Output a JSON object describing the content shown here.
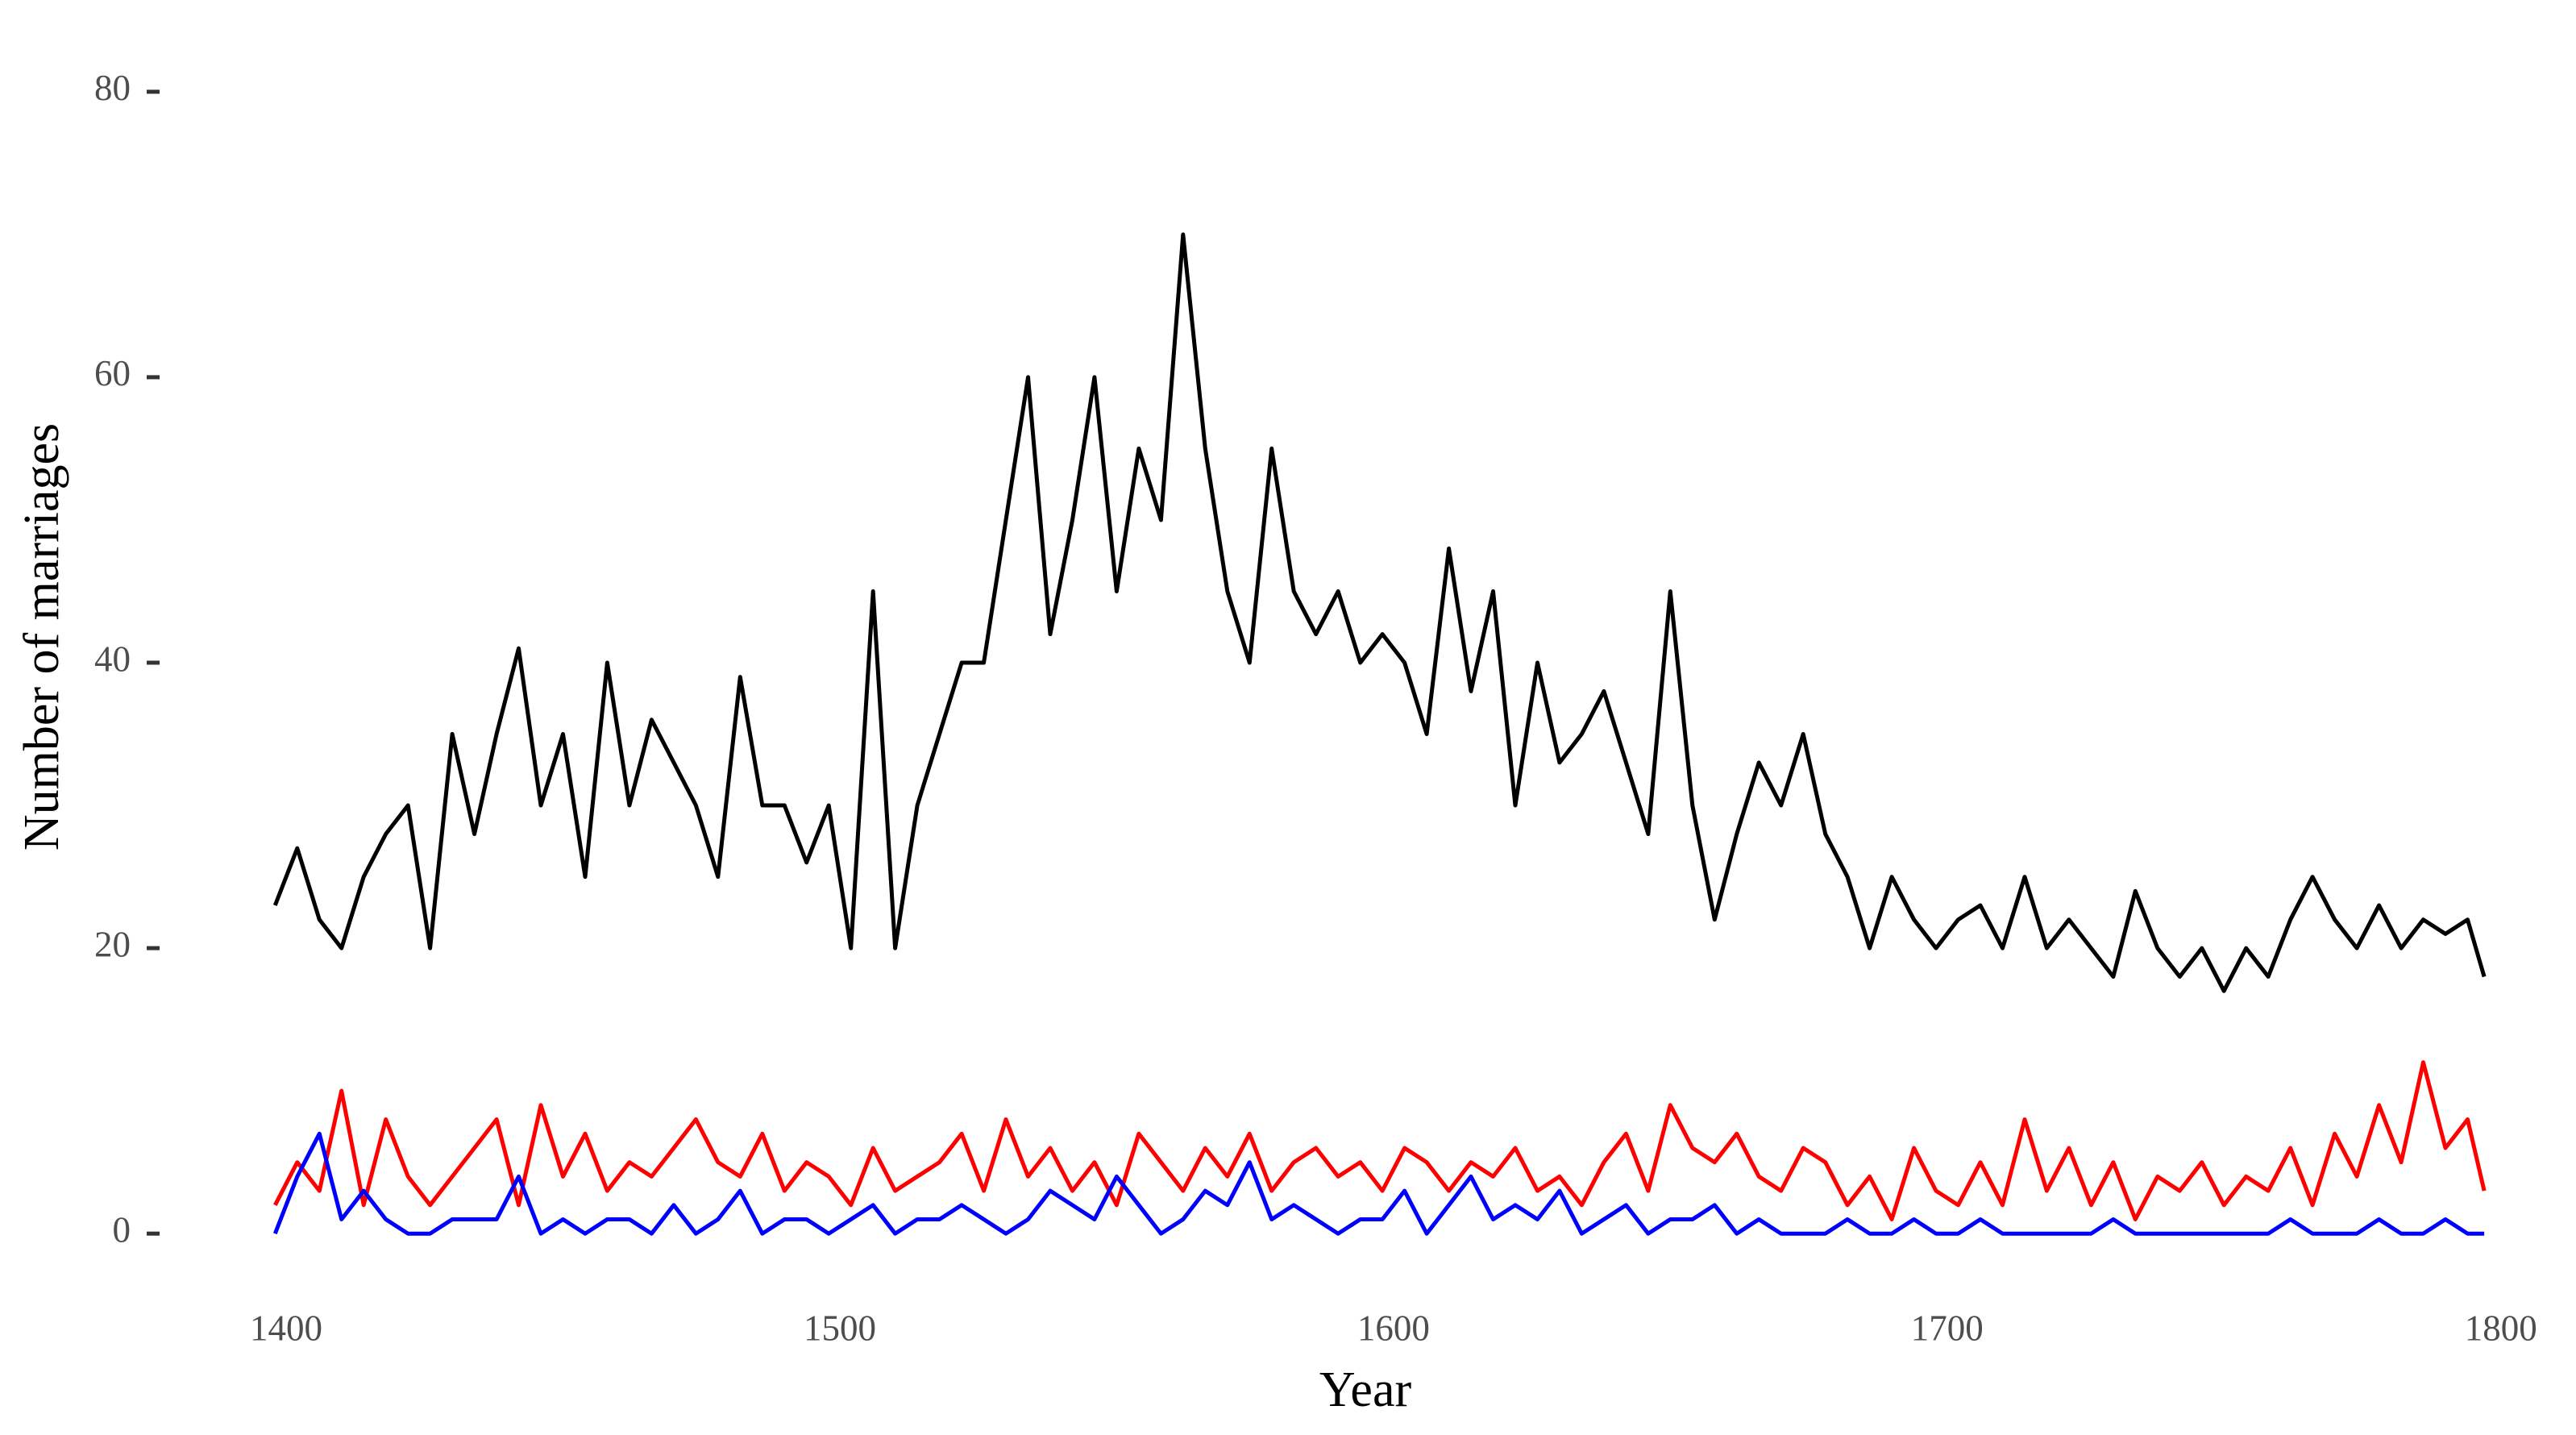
{
  "chart_data": {
    "type": "line",
    "x_label": "Year",
    "y_label": "Number of marriages",
    "x": [
      1398,
      1402,
      1406,
      1410,
      1414,
      1418,
      1422,
      1426,
      1430,
      1434,
      1438,
      1442,
      1446,
      1450,
      1454,
      1458,
      1462,
      1466,
      1470,
      1474,
      1478,
      1482,
      1486,
      1490,
      1494,
      1498,
      1502,
      1506,
      1510,
      1514,
      1518,
      1522,
      1526,
      1530,
      1534,
      1538,
      1542,
      1546,
      1550,
      1554,
      1558,
      1562,
      1566,
      1570,
      1574,
      1578,
      1582,
      1586,
      1590,
      1594,
      1598,
      1602,
      1606,
      1610,
      1614,
      1618,
      1622,
      1626,
      1630,
      1634,
      1638,
      1642,
      1646,
      1650,
      1654,
      1658,
      1662,
      1666,
      1670,
      1674,
      1678,
      1682,
      1686,
      1690,
      1694,
      1698,
      1702,
      1706,
      1710,
      1714,
      1718,
      1722,
      1726,
      1730,
      1734,
      1738,
      1742,
      1746,
      1750,
      1754,
      1758,
      1762,
      1766,
      1770,
      1774,
      1778,
      1782,
      1786,
      1790,
      1794,
      1797
    ],
    "series": [
      {
        "color": "#000000",
        "values": [
          23,
          27,
          22,
          20,
          25,
          28,
          30,
          20,
          35,
          28,
          35,
          41,
          30,
          35,
          25,
          40,
          30,
          36,
          33,
          30,
          25,
          39,
          30,
          30,
          26,
          30,
          20,
          45,
          20,
          30,
          35,
          40,
          40,
          50,
          60,
          42,
          50,
          60,
          45,
          55,
          50,
          70,
          55,
          45,
          40,
          55,
          45,
          42,
          45,
          40,
          42,
          40,
          35,
          48,
          38,
          45,
          30,
          40,
          33,
          35,
          38,
          33,
          28,
          45,
          30,
          22,
          28,
          33,
          30,
          35,
          28,
          25,
          20,
          25,
          22,
          20,
          22,
          23,
          20,
          25,
          20,
          22,
          20,
          18,
          24,
          20,
          18,
          20,
          17,
          20,
          18,
          22,
          25,
          22,
          20,
          23,
          20,
          22,
          21,
          22,
          18
        ]
      },
      {
        "color": "#ff0000",
        "values": [
          2,
          5,
          3,
          10,
          2,
          8,
          4,
          2,
          4,
          6,
          8,
          2,
          9,
          4,
          7,
          3,
          5,
          4,
          6,
          8,
          5,
          4,
          7,
          3,
          5,
          4,
          2,
          6,
          3,
          4,
          5,
          7,
          3,
          8,
          4,
          6,
          3,
          5,
          2,
          7,
          5,
          3,
          6,
          4,
          7,
          3,
          5,
          6,
          4,
          5,
          3,
          6,
          5,
          3,
          5,
          4,
          6,
          3,
          4,
          2,
          5,
          7,
          3,
          9,
          6,
          5,
          7,
          4,
          3,
          6,
          5,
          2,
          4,
          1,
          6,
          3,
          2,
          5,
          2,
          8,
          3,
          6,
          2,
          5,
          1,
          4,
          3,
          5,
          2,
          4,
          3,
          6,
          2,
          7,
          4,
          9,
          5,
          12,
          6,
          8,
          3
        ]
      },
      {
        "color": "#0000ff",
        "values": [
          0,
          4,
          7,
          1,
          3,
          1,
          0,
          0,
          1,
          1,
          1,
          4,
          0,
          1,
          0,
          1,
          1,
          0,
          2,
          0,
          1,
          3,
          0,
          1,
          1,
          0,
          1,
          2,
          0,
          1,
          1,
          2,
          1,
          0,
          1,
          3,
          2,
          1,
          4,
          2,
          0,
          1,
          3,
          2,
          5,
          1,
          2,
          1,
          0,
          1,
          1,
          3,
          0,
          2,
          4,
          1,
          2,
          1,
          3,
          0,
          1,
          2,
          0,
          1,
          1,
          2,
          0,
          1,
          0,
          0,
          0,
          1,
          0,
          0,
          1,
          0,
          0,
          1,
          0,
          0,
          0,
          0,
          0,
          1,
          0,
          0,
          0,
          0,
          0,
          0,
          0,
          1,
          0,
          0,
          0,
          1,
          0,
          0,
          1,
          0,
          0
        ]
      }
    ],
    "xlim": [
      1385,
      1813
    ],
    "ylim": [
      -4,
      84
    ],
    "xticks": [
      1400,
      1500,
      1600,
      1700,
      1800
    ],
    "yticks": [
      0,
      20,
      40,
      60,
      80
    ],
    "line_width": 5
  }
}
